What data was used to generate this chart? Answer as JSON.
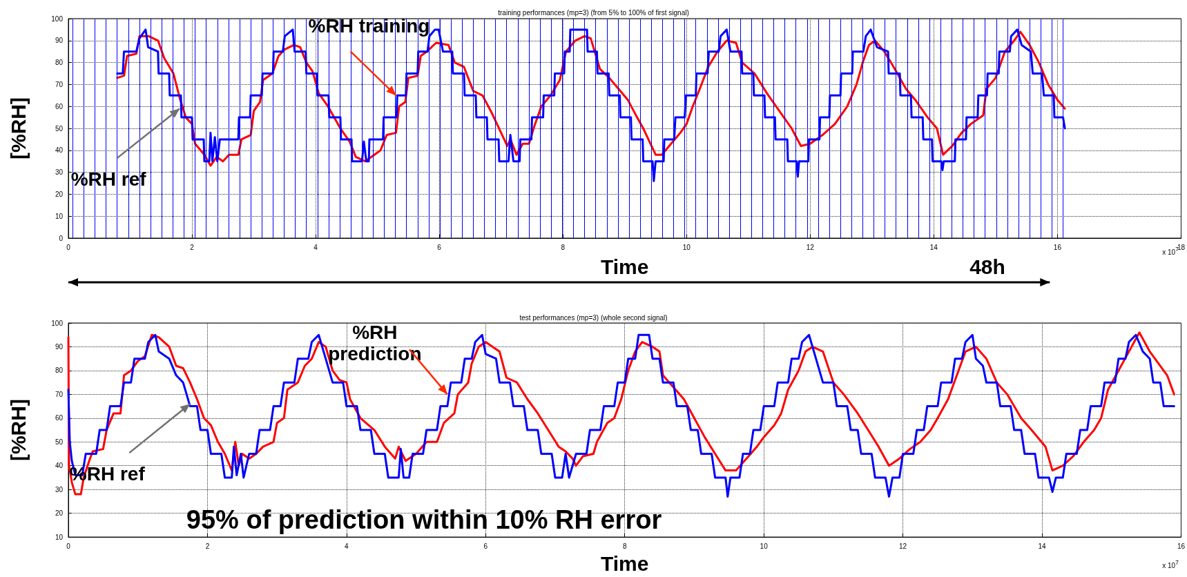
{
  "chart_data": [
    {
      "type": "line",
      "title": "training performances (mp=3) (from 5% to 100% of first signal)",
      "xlabel": "Time",
      "ylabel": "[%RH]",
      "xlim": [
        0,
        18
      ],
      "xticks": [
        0,
        2,
        4,
        6,
        8,
        10,
        12,
        14,
        16,
        18
      ],
      "ylim": [
        0,
        100
      ],
      "yticks": [
        0,
        10,
        20,
        30,
        40,
        50,
        60,
        70,
        80,
        90,
        100
      ],
      "grid": true,
      "annotations": [
        {
          "text": "%RH training",
          "x": 5.3,
          "y": 65
        },
        {
          "text": "%RH ref",
          "x": 1.8,
          "y": 59
        },
        "48h",
        "x 10$^{7}$"
      ],
      "series": [
        {
          "color": "#ff0000",
          "x": [
            0.79,
            0.9,
            0.95,
            1.1,
            1.15,
            1.3,
            1.45,
            1.55,
            1.7,
            1.8,
            1.9,
            2.0,
            2.05,
            2.2,
            2.3,
            2.4,
            2.5,
            2.6,
            2.75,
            2.8,
            2.95,
            3.0,
            3.1,
            3.15,
            3.3,
            3.4,
            3.5,
            3.65,
            3.75,
            3.85,
            3.95,
            4.05,
            4.2,
            4.4,
            4.55,
            4.65,
            4.8,
            4.95,
            5.05,
            5.15,
            5.3,
            5.35,
            5.45,
            5.5,
            5.65,
            5.7,
            5.8,
            5.95,
            6.15,
            6.25,
            6.4,
            6.55,
            6.7,
            6.85,
            7.0,
            7.1,
            7.15,
            7.25,
            7.35,
            7.45,
            7.55,
            7.65,
            7.8,
            7.95,
            8.05,
            8.2,
            8.35,
            8.45,
            8.6,
            8.75,
            8.9,
            9.05,
            9.2,
            9.3,
            9.4,
            9.5,
            9.6,
            9.75,
            9.9,
            10.0,
            10.1,
            10.2,
            10.35,
            10.5,
            10.65,
            10.8,
            10.9,
            11.1,
            11.3,
            11.5,
            11.7,
            11.85,
            12.0,
            12.2,
            12.4,
            12.6,
            12.75,
            12.85,
            12.95,
            13.05,
            13.2,
            13.35,
            13.55,
            13.7,
            13.9,
            14.05,
            14.15,
            14.3,
            14.45,
            14.6,
            14.8,
            14.85,
            15.0,
            15.15,
            15.3,
            15.4,
            15.55,
            15.7,
            15.85,
            16.0,
            16.12
          ],
          "values": [
            73,
            74,
            83,
            84,
            92,
            92,
            90,
            82,
            75,
            64,
            55,
            52,
            43,
            38,
            33,
            37,
            35,
            38,
            38,
            45,
            47,
            58,
            62,
            72,
            75,
            83,
            86,
            88,
            87,
            80,
            76,
            66,
            60,
            50,
            44,
            37,
            35,
            38,
            40,
            47,
            48,
            60,
            62,
            73,
            74,
            83,
            85,
            89,
            88,
            80,
            78,
            67,
            65,
            57,
            48,
            42,
            45,
            38,
            43,
            43,
            52,
            60,
            65,
            72,
            85,
            90,
            92,
            91,
            77,
            73,
            68,
            63,
            55,
            50,
            44,
            38,
            38,
            43,
            48,
            52,
            60,
            67,
            78,
            85,
            90,
            89,
            80,
            75,
            66,
            58,
            50,
            42,
            43,
            47,
            52,
            60,
            70,
            80,
            88,
            90,
            85,
            78,
            68,
            63,
            55,
            50,
            38,
            42,
            48,
            52,
            56,
            68,
            73,
            85,
            90,
            94,
            88,
            80,
            70,
            63,
            59
          ]
        },
        {
          "color": "#0000ff",
          "x": [
            0.79,
            0.88,
            0.9,
            1.1,
            1.15,
            1.25,
            1.29,
            1.45,
            1.46,
            1.63,
            1.64,
            1.82,
            1.83,
            2.0,
            2.01,
            2.19,
            2.2,
            2.28,
            2.3,
            2.33,
            2.37,
            2.41,
            2.45,
            2.75,
            2.76,
            2.94,
            2.95,
            3.13,
            3.14,
            3.31,
            3.32,
            3.47,
            3.5,
            3.63,
            3.66,
            3.84,
            3.85,
            4.02,
            4.03,
            4.21,
            4.22,
            4.4,
            4.41,
            4.58,
            4.59,
            4.75,
            4.78,
            4.82,
            4.86,
            4.87,
            5.09,
            5.1,
            5.31,
            5.32,
            5.46,
            5.47,
            5.65,
            5.66,
            5.81,
            5.84,
            5.93,
            5.99,
            6.06,
            6.21,
            6.22,
            6.4,
            6.41,
            6.59,
            6.6,
            6.77,
            6.78,
            6.96,
            6.97,
            7.12,
            7.15,
            7.2,
            7.3,
            7.31,
            7.49,
            7.5,
            7.68,
            7.69,
            7.86,
            7.87,
            8.02,
            8.03,
            8.11,
            8.12,
            8.39,
            8.4,
            8.55,
            8.56,
            8.74,
            8.75,
            8.92,
            8.93,
            9.1,
            9.11,
            9.29,
            9.3,
            9.45,
            9.47,
            9.5,
            9.63,
            9.64,
            9.8,
            9.82,
            9.97,
            9.99,
            10.15,
            10.16,
            10.34,
            10.36,
            10.52,
            10.55,
            10.65,
            10.71,
            10.89,
            10.9,
            11.08,
            11.09,
            11.26,
            11.27,
            11.43,
            11.44,
            11.63,
            11.64,
            11.78,
            11.8,
            11.82,
            11.97,
            11.98,
            12.15,
            12.16,
            12.31,
            12.32,
            12.49,
            12.5,
            12.68,
            12.69,
            12.86,
            12.9,
            12.98,
            13.08,
            13.26,
            13.27,
            13.45,
            13.46,
            13.63,
            13.64,
            13.82,
            13.83,
            13.97,
            13.98,
            14.12,
            14.14,
            14.16,
            14.34,
            14.35,
            14.52,
            14.53,
            14.71,
            14.72,
            14.86,
            14.87,
            15.05,
            15.06,
            15.23,
            15.25,
            15.35,
            15.42,
            15.57,
            15.6,
            15.75,
            15.78,
            15.94,
            15.95,
            16.09,
            16.12
          ],
          "values": [
            75,
            75,
            85,
            85,
            91,
            95,
            87,
            85,
            75,
            75,
            65,
            65,
            55,
            55,
            45,
            45,
            35,
            35,
            48,
            35,
            46,
            35,
            45,
            45,
            55,
            55,
            65,
            65,
            75,
            75,
            85,
            85,
            92,
            95,
            85,
            85,
            75,
            75,
            65,
            65,
            55,
            55,
            45,
            45,
            35,
            35,
            44,
            35,
            35,
            45,
            45,
            55,
            55,
            65,
            65,
            75,
            75,
            85,
            85,
            92,
            95,
            95,
            85,
            85,
            75,
            75,
            65,
            65,
            55,
            55,
            45,
            45,
            35,
            35,
            47,
            35,
            35,
            45,
            45,
            55,
            55,
            65,
            65,
            75,
            75,
            85,
            85,
            95,
            95,
            85,
            85,
            75,
            75,
            65,
            65,
            55,
            55,
            45,
            45,
            35,
            35,
            26,
            35,
            35,
            45,
            45,
            55,
            55,
            65,
            65,
            75,
            75,
            85,
            85,
            92,
            95,
            85,
            85,
            75,
            75,
            65,
            65,
            55,
            55,
            45,
            45,
            35,
            35,
            28,
            35,
            35,
            45,
            45,
            55,
            55,
            65,
            65,
            75,
            75,
            85,
            85,
            92,
            95,
            87,
            85,
            75,
            75,
            65,
            65,
            55,
            55,
            45,
            45,
            35,
            35,
            31,
            35,
            35,
            45,
            45,
            55,
            55,
            65,
            65,
            75,
            75,
            85,
            85,
            92,
            95,
            88,
            85,
            75,
            75,
            65,
            65,
            55,
            55,
            50
          ]
        }
      ],
      "ref_lines": [
        {
          "axis": "x",
          "value": 0.07,
          "color": "#0000ff"
        },
        {
          "axis": "x",
          "value": 0.25,
          "color": "#0000ff"
        },
        {
          "axis": "x",
          "value": 0.43,
          "color": "#0000ff"
        },
        {
          "axis": "x",
          "value": 0.61,
          "color": "#0000ff"
        },
        {
          "axis": "x",
          "value": 0.79,
          "color": "#0000ff"
        },
        {
          "axis": "x",
          "value": 0.97,
          "color": "#0000ff"
        },
        {
          "axis": "x",
          "value": 1.15,
          "color": "#0000ff"
        },
        {
          "axis": "x",
          "value": 1.33,
          "color": "#0000ff"
        },
        {
          "axis": "x",
          "value": 1.51,
          "color": "#0000ff"
        },
        {
          "axis": "x",
          "value": 1.69,
          "color": "#0000ff"
        },
        {
          "axis": "x",
          "value": 1.87,
          "color": "#0000ff"
        },
        {
          "axis": "x",
          "value": 2.05,
          "color": "#0000ff"
        },
        {
          "axis": "x",
          "value": 2.23,
          "color": "#0000ff"
        },
        {
          "axis": "x",
          "value": 2.41,
          "color": "#0000ff"
        },
        {
          "axis": "x",
          "value": 2.59,
          "color": "#0000ff"
        },
        {
          "axis": "x",
          "value": 2.77,
          "color": "#0000ff"
        },
        {
          "axis": "x",
          "value": 2.95,
          "color": "#0000ff"
        },
        {
          "axis": "x",
          "value": 3.13,
          "color": "#0000ff"
        },
        {
          "axis": "x",
          "value": 3.31,
          "color": "#0000ff"
        },
        {
          "axis": "x",
          "value": 3.49,
          "color": "#0000ff"
        },
        {
          "axis": "x",
          "value": 3.67,
          "color": "#0000ff"
        },
        {
          "axis": "x",
          "value": 3.85,
          "color": "#0000ff"
        },
        {
          "axis": "x",
          "value": 4.03,
          "color": "#0000ff"
        },
        {
          "axis": "x",
          "value": 4.21,
          "color": "#0000ff"
        },
        {
          "axis": "x",
          "value": 4.39,
          "color": "#0000ff"
        },
        {
          "axis": "x",
          "value": 4.57,
          "color": "#0000ff"
        },
        {
          "axis": "x",
          "value": 4.75,
          "color": "#0000ff"
        },
        {
          "axis": "x",
          "value": 4.93,
          "color": "#0000ff"
        },
        {
          "axis": "x",
          "value": 5.11,
          "color": "#0000ff"
        },
        {
          "axis": "x",
          "value": 5.29,
          "color": "#0000ff"
        },
        {
          "axis": "x",
          "value": 5.47,
          "color": "#0000ff"
        },
        {
          "axis": "x",
          "value": 5.65,
          "color": "#0000ff"
        },
        {
          "axis": "x",
          "value": 5.83,
          "color": "#0000ff"
        },
        {
          "axis": "x",
          "value": 6.01,
          "color": "#0000ff"
        },
        {
          "axis": "x",
          "value": 6.19,
          "color": "#0000ff"
        },
        {
          "axis": "x",
          "value": 6.37,
          "color": "#0000ff"
        },
        {
          "axis": "x",
          "value": 6.55,
          "color": "#0000ff"
        },
        {
          "axis": "x",
          "value": 6.73,
          "color": "#0000ff"
        },
        {
          "axis": "x",
          "value": 6.91,
          "color": "#0000ff"
        },
        {
          "axis": "x",
          "value": 7.09,
          "color": "#0000ff"
        },
        {
          "axis": "x",
          "value": 7.27,
          "color": "#0000ff"
        },
        {
          "axis": "x",
          "value": 7.45,
          "color": "#0000ff"
        },
        {
          "axis": "x",
          "value": 7.63,
          "color": "#0000ff"
        },
        {
          "axis": "x",
          "value": 7.81,
          "color": "#0000ff"
        },
        {
          "axis": "x",
          "value": 7.99,
          "color": "#0000ff"
        },
        {
          "axis": "x",
          "value": 8.17,
          "color": "#0000ff"
        },
        {
          "axis": "x",
          "value": 8.35,
          "color": "#0000ff"
        },
        {
          "axis": "x",
          "value": 8.53,
          "color": "#0000ff"
        },
        {
          "axis": "x",
          "value": 8.71,
          "color": "#0000ff"
        },
        {
          "axis": "x",
          "value": 8.89,
          "color": "#0000ff"
        },
        {
          "axis": "x",
          "value": 9.07,
          "color": "#0000ff"
        },
        {
          "axis": "x",
          "value": 9.25,
          "color": "#0000ff"
        },
        {
          "axis": "x",
          "value": 9.43,
          "color": "#0000ff"
        },
        {
          "axis": "x",
          "value": 9.61,
          "color": "#0000ff"
        },
        {
          "axis": "x",
          "value": 9.79,
          "color": "#0000ff"
        },
        {
          "axis": "x",
          "value": 9.97,
          "color": "#0000ff"
        },
        {
          "axis": "x",
          "value": 10.15,
          "color": "#0000ff"
        },
        {
          "axis": "x",
          "value": 10.33,
          "color": "#0000ff"
        },
        {
          "axis": "x",
          "value": 10.51,
          "color": "#0000ff"
        },
        {
          "axis": "x",
          "value": 10.69,
          "color": "#0000ff"
        },
        {
          "axis": "x",
          "value": 10.87,
          "color": "#0000ff"
        },
        {
          "axis": "x",
          "value": 11.05,
          "color": "#0000ff"
        },
        {
          "axis": "x",
          "value": 11.23,
          "color": "#0000ff"
        },
        {
          "axis": "x",
          "value": 11.41,
          "color": "#0000ff"
        },
        {
          "axis": "x",
          "value": 11.59,
          "color": "#0000ff"
        },
        {
          "axis": "x",
          "value": 11.77,
          "color": "#0000ff"
        },
        {
          "axis": "x",
          "value": 11.95,
          "color": "#0000ff"
        },
        {
          "axis": "x",
          "value": 12.13,
          "color": "#0000ff"
        },
        {
          "axis": "x",
          "value": 12.31,
          "color": "#0000ff"
        },
        {
          "axis": "x",
          "value": 12.49,
          "color": "#0000ff"
        },
        {
          "axis": "x",
          "value": 12.67,
          "color": "#0000ff"
        },
        {
          "axis": "x",
          "value": 12.85,
          "color": "#0000ff"
        },
        {
          "axis": "x",
          "value": 13.03,
          "color": "#0000ff"
        },
        {
          "axis": "x",
          "value": 13.21,
          "color": "#0000ff"
        },
        {
          "axis": "x",
          "value": 13.39,
          "color": "#0000ff"
        },
        {
          "axis": "x",
          "value": 13.57,
          "color": "#0000ff"
        },
        {
          "axis": "x",
          "value": 13.75,
          "color": "#0000ff"
        },
        {
          "axis": "x",
          "value": 13.93,
          "color": "#0000ff"
        },
        {
          "axis": "x",
          "value": 14.11,
          "color": "#0000ff"
        },
        {
          "axis": "x",
          "value": 14.29,
          "color": "#0000ff"
        },
        {
          "axis": "x",
          "value": 14.47,
          "color": "#0000ff"
        },
        {
          "axis": "x",
          "value": 14.65,
          "color": "#0000ff"
        },
        {
          "axis": "x",
          "value": 14.83,
          "color": "#0000ff"
        },
        {
          "axis": "x",
          "value": 15.01,
          "color": "#0000ff"
        },
        {
          "axis": "x",
          "value": 15.19,
          "color": "#0000ff"
        },
        {
          "axis": "x",
          "value": 15.37,
          "color": "#0000ff"
        },
        {
          "axis": "x",
          "value": 15.55,
          "color": "#0000ff"
        },
        {
          "axis": "x",
          "value": 15.73,
          "color": "#0000ff"
        },
        {
          "axis": "x",
          "value": 15.91,
          "color": "#0000ff"
        },
        {
          "axis": "x",
          "value": 16.09,
          "color": "#0000ff"
        }
      ]
    },
    {
      "type": "line",
      "title": "test performances (mp=3) (whole second signal)",
      "xlabel": "Time",
      "ylabel": "[%RH]",
      "xlim": [
        0,
        16
      ],
      "xticks": [
        0,
        2,
        4,
        6,
        8,
        10,
        12,
        14,
        16
      ],
      "ylim": [
        10,
        100
      ],
      "yticks": [
        10,
        20,
        30,
        40,
        50,
        60,
        70,
        80,
        90,
        100
      ],
      "grid": true,
      "annotations": [
        {
          "text": "%RH prediction",
          "x": 5.45,
          "y": 70
        },
        {
          "text": "%RH ref",
          "x": 1.75,
          "y": 66
        },
        "95% of prediction within 10% RH error",
        "x 10$^{7}$"
      ],
      "series": [
        {
          "color": "#ff0000",
          "x": [
            0,
            0.01,
            0.05,
            0.1,
            0.18,
            0.22,
            0.3,
            0.35,
            0.5,
            0.55,
            0.65,
            0.75,
            0.8,
            0.9,
            1.0,
            1.1,
            1.2,
            1.3,
            1.45,
            1.55,
            1.65,
            1.75,
            1.85,
            1.95,
            2.05,
            2.15,
            2.25,
            2.35,
            2.4,
            2.45,
            2.5,
            2.6,
            2.7,
            2.8,
            2.95,
            3.0,
            3.1,
            3.15,
            3.3,
            3.4,
            3.5,
            3.6,
            3.7,
            3.8,
            3.9,
            4.0,
            4.05,
            4.2,
            4.4,
            4.55,
            4.7,
            4.75,
            4.85,
            5.0,
            5.15,
            5.3,
            5.4,
            5.55,
            5.6,
            5.75,
            5.8,
            5.9,
            6.0,
            6.15,
            6.2,
            6.3,
            6.45,
            6.6,
            6.75,
            6.9,
            7.05,
            7.15,
            7.25,
            7.3,
            7.4,
            7.55,
            7.6,
            7.75,
            7.85,
            7.95,
            8.05,
            8.15,
            8.25,
            8.4,
            8.5,
            8.55,
            8.7,
            8.85,
            9.0,
            9.15,
            9.3,
            9.45,
            9.6,
            9.75,
            9.9,
            10.0,
            10.15,
            10.25,
            10.35,
            10.5,
            10.6,
            10.7,
            10.85,
            11.0,
            11.15,
            11.35,
            11.5,
            11.65,
            11.8,
            11.95,
            12.1,
            12.25,
            12.4,
            12.5,
            12.65,
            12.8,
            12.9,
            13.05,
            13.2,
            13.35,
            13.5,
            13.7,
            13.85,
            14.05,
            14.15,
            14.3,
            14.45,
            14.6,
            14.75,
            14.85,
            14.95,
            15.1,
            15.25,
            15.4,
            15.55,
            15.7,
            15.8,
            15.9
          ],
          "values": [
            94,
            40,
            33,
            28,
            28,
            35,
            42,
            46,
            47,
            55,
            62,
            62,
            78,
            80,
            84,
            86,
            95,
            94,
            90,
            82,
            81,
            75,
            68,
            60,
            57,
            50,
            45,
            38,
            50,
            40,
            45,
            43,
            45,
            48,
            50,
            58,
            60,
            72,
            75,
            82,
            85,
            92,
            90,
            80,
            76,
            75,
            68,
            60,
            55,
            48,
            43,
            48,
            42,
            45,
            50,
            50,
            58,
            62,
            70,
            75,
            83,
            90,
            92,
            89,
            88,
            77,
            75,
            68,
            62,
            55,
            48,
            46,
            43,
            40,
            44,
            45,
            50,
            58,
            60,
            68,
            80,
            88,
            92,
            90,
            88,
            78,
            73,
            68,
            60,
            52,
            45,
            38,
            38,
            43,
            48,
            52,
            57,
            62,
            72,
            80,
            88,
            90,
            88,
            75,
            70,
            62,
            55,
            48,
            40,
            43,
            47,
            50,
            55,
            60,
            68,
            80,
            88,
            90,
            85,
            75,
            70,
            60,
            55,
            48,
            38,
            40,
            44,
            50,
            55,
            60,
            72,
            80,
            88,
            96,
            88,
            82,
            78,
            70
          ]
        },
        {
          "color": "#0000ff",
          "x": [
            0,
            0.02,
            0.05,
            0.1,
            0.2,
            0.25,
            0.4,
            0.45,
            0.55,
            0.6,
            0.75,
            0.8,
            0.9,
            0.95,
            1.1,
            1.15,
            1.25,
            1.3,
            1.45,
            1.55,
            1.65,
            1.75,
            1.85,
            1.9,
            2.0,
            2.05,
            2.2,
            2.25,
            2.35,
            2.38,
            2.42,
            2.48,
            2.52,
            2.6,
            2.7,
            2.75,
            2.9,
            2.95,
            3.05,
            3.1,
            3.25,
            3.3,
            3.45,
            3.5,
            3.6,
            3.7,
            3.75,
            3.8,
            3.95,
            4.0,
            4.15,
            4.2,
            4.35,
            4.4,
            4.55,
            4.6,
            4.75,
            4.78,
            4.82,
            4.9,
            4.95,
            5.1,
            5.15,
            5.3,
            5.35,
            5.45,
            5.5,
            5.65,
            5.7,
            5.8,
            5.85,
            5.95,
            6.0,
            6.15,
            6.2,
            6.35,
            6.4,
            6.55,
            6.6,
            6.75,
            6.8,
            6.95,
            7.0,
            7.1,
            7.15,
            7.2,
            7.3,
            7.45,
            7.5,
            7.65,
            7.7,
            7.85,
            7.9,
            8.0,
            8.05,
            8.15,
            8.2,
            8.35,
            8.4,
            8.5,
            8.55,
            8.7,
            8.75,
            8.9,
            8.95,
            9.05,
            9.1,
            9.25,
            9.3,
            9.45,
            9.48,
            9.52,
            9.65,
            9.7,
            9.8,
            9.85,
            9.95,
            10.0,
            10.15,
            10.2,
            10.35,
            10.4,
            10.5,
            10.55,
            10.65,
            10.75,
            10.85,
            11.0,
            11.05,
            11.2,
            11.25,
            11.35,
            11.4,
            11.55,
            11.6,
            11.75,
            11.8,
            11.85,
            11.95,
            12.0,
            12.15,
            12.2,
            12.3,
            12.35,
            12.5,
            12.55,
            12.7,
            12.75,
            12.85,
            12.9,
            13.0,
            13.05,
            13.15,
            13.2,
            13.35,
            13.4,
            13.55,
            13.6,
            13.7,
            13.75,
            13.9,
            13.95,
            14.1,
            14.15,
            14.2,
            14.3,
            14.35,
            14.5,
            14.55,
            14.65,
            14.7,
            14.85,
            14.9,
            15.05,
            15.1,
            15.2,
            15.25,
            15.35,
            15.45,
            15.55,
            15.6,
            15.7,
            15.75,
            15.9
          ],
          "values": [
            72,
            50,
            42,
            36,
            36,
            45,
            45,
            55,
            55,
            65,
            65,
            75,
            75,
            85,
            85,
            92,
            95,
            88,
            85,
            78,
            75,
            65,
            65,
            55,
            55,
            45,
            45,
            35,
            35,
            48,
            36,
            45,
            35,
            45,
            45,
            55,
            55,
            65,
            65,
            75,
            75,
            85,
            85,
            92,
            95,
            85,
            80,
            75,
            75,
            65,
            65,
            55,
            55,
            45,
            45,
            35,
            35,
            47,
            35,
            35,
            45,
            45,
            55,
            55,
            65,
            65,
            75,
            75,
            85,
            85,
            92,
            95,
            87,
            85,
            75,
            75,
            65,
            65,
            55,
            55,
            45,
            45,
            35,
            35,
            45,
            35,
            45,
            45,
            55,
            55,
            65,
            65,
            75,
            75,
            85,
            85,
            95,
            95,
            85,
            85,
            75,
            75,
            65,
            65,
            55,
            55,
            45,
            45,
            35,
            35,
            27,
            35,
            35,
            45,
            45,
            55,
            55,
            65,
            65,
            75,
            75,
            85,
            85,
            92,
            95,
            85,
            75,
            75,
            65,
            65,
            55,
            55,
            45,
            45,
            35,
            35,
            27,
            35,
            35,
            45,
            45,
            55,
            55,
            65,
            65,
            75,
            75,
            85,
            85,
            92,
            95,
            85,
            82,
            75,
            75,
            65,
            65,
            55,
            55,
            45,
            45,
            35,
            35,
            29,
            35,
            35,
            45,
            45,
            55,
            55,
            65,
            65,
            75,
            75,
            85,
            85,
            92,
            95,
            88,
            85,
            75,
            75,
            65,
            65
          ]
        }
      ]
    }
  ]
}
